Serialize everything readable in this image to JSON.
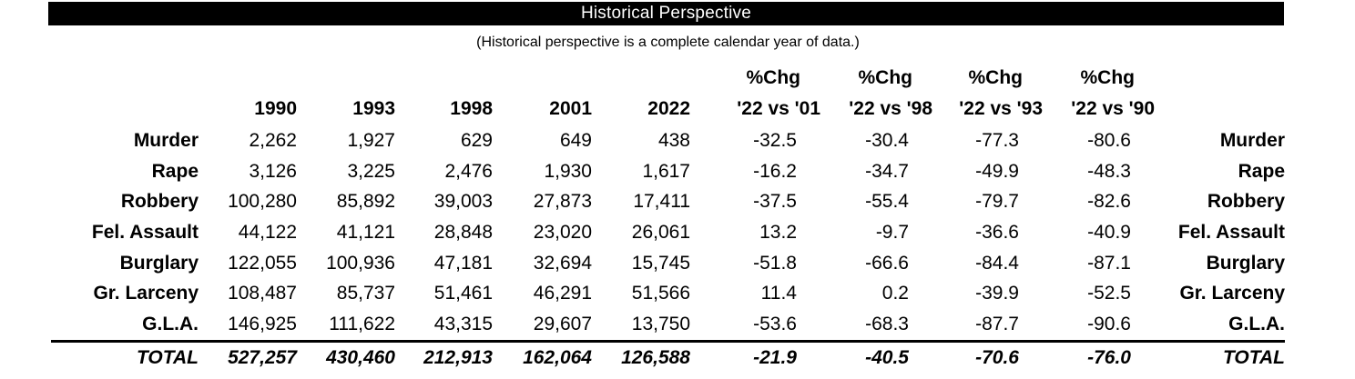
{
  "title": "Historical Perspective",
  "subtitle": "(Historical perspective is a complete calendar year of data.)",
  "colors": {
    "title_bar_bg": "#000000",
    "title_text": "#ffffff",
    "body_text": "#000000",
    "background": "#ffffff"
  },
  "table": {
    "year_headers": [
      "1990",
      "1993",
      "1998",
      "2001",
      "2022"
    ],
    "pct_headers": [
      {
        "line1": "%Chg",
        "line2": "'22 vs '01"
      },
      {
        "line1": "%Chg",
        "line2": "'22 vs '98"
      },
      {
        "line1": "%Chg",
        "line2": "'22 vs '93"
      },
      {
        "line1": "%Chg",
        "line2": "'22 vs '90"
      }
    ],
    "rows": [
      {
        "label": "Murder",
        "values": [
          "2,262",
          "1,927",
          "629",
          "649",
          "438",
          "-32.5",
          "-30.4",
          "-77.3",
          "-80.6"
        ]
      },
      {
        "label": "Rape",
        "values": [
          "3,126",
          "3,225",
          "2,476",
          "1,930",
          "1,617",
          "-16.2",
          "-34.7",
          "-49.9",
          "-48.3"
        ]
      },
      {
        "label": "Robbery",
        "values": [
          "100,280",
          "85,892",
          "39,003",
          "27,873",
          "17,411",
          "-37.5",
          "-55.4",
          "-79.7",
          "-82.6"
        ]
      },
      {
        "label": "Fel. Assault",
        "values": [
          "44,122",
          "41,121",
          "28,848",
          "23,020",
          "26,061",
          "13.2",
          "-9.7",
          "-36.6",
          "-40.9"
        ]
      },
      {
        "label": "Burglary",
        "values": [
          "122,055",
          "100,936",
          "47,181",
          "32,694",
          "15,745",
          "-51.8",
          "-66.6",
          "-84.4",
          "-87.1"
        ]
      },
      {
        "label": "Gr. Larceny",
        "values": [
          "108,487",
          "85,737",
          "51,461",
          "46,291",
          "51,566",
          "11.4",
          "0.2",
          "-39.9",
          "-52.5"
        ]
      },
      {
        "label": "G.L.A.",
        "values": [
          "146,925",
          "111,622",
          "43,315",
          "29,607",
          "13,750",
          "-53.6",
          "-68.3",
          "-87.7",
          "-90.6"
        ]
      }
    ],
    "total_row": {
      "label": "TOTAL",
      "values": [
        "527,257",
        "430,460",
        "212,913",
        "162,064",
        "126,588",
        "-21.9",
        "-40.5",
        "-70.6",
        "-76.0"
      ]
    }
  }
}
